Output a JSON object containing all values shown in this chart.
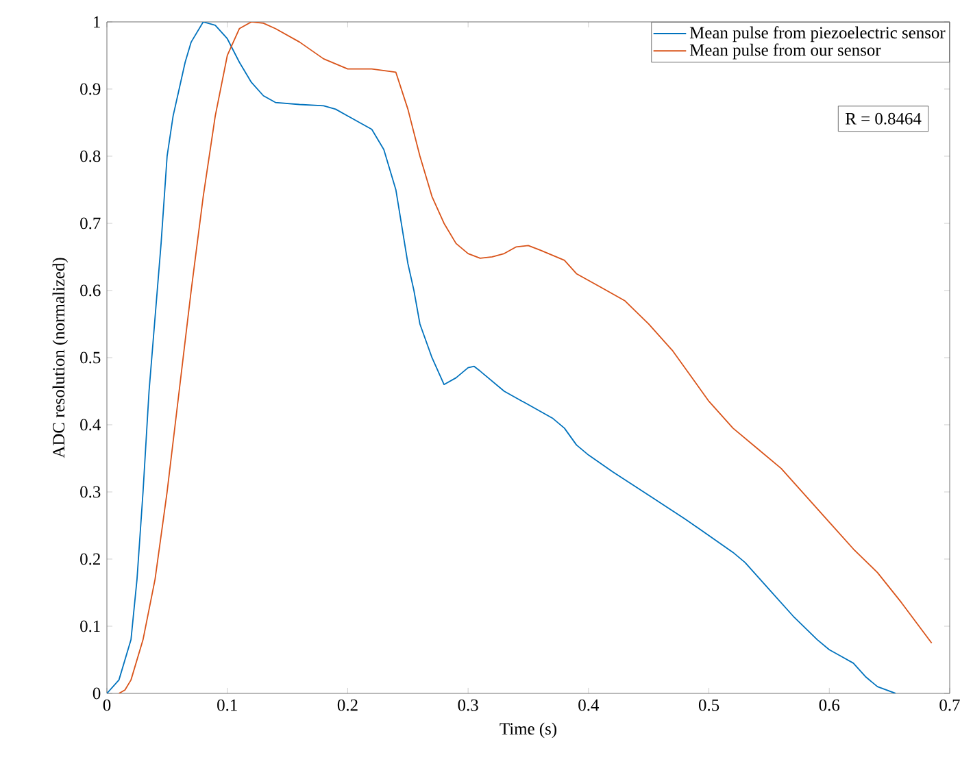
{
  "chart_data": {
    "type": "line",
    "xlabel": "Time (s)",
    "ylabel": "ADC resolution (normalized)",
    "xlim": [
      0,
      0.7
    ],
    "ylim": [
      0,
      1
    ],
    "xticks": [
      0,
      0.1,
      0.2,
      0.3,
      0.4,
      0.5,
      0.6,
      0.7
    ],
    "yticks": [
      0,
      0.1,
      0.2,
      0.3,
      0.4,
      0.5,
      0.6,
      0.7,
      0.8,
      0.9,
      1
    ],
    "legend": "top right",
    "annotations": [
      "R = 0.8464"
    ],
    "series": [
      {
        "name": "Mean pulse from piezoelectric sensor",
        "color": "#0072bd",
        "x": [
          0,
          0.01,
          0.02,
          0.025,
          0.03,
          0.035,
          0.04,
          0.045,
          0.05,
          0.055,
          0.06,
          0.065,
          0.07,
          0.08,
          0.09,
          0.1,
          0.11,
          0.12,
          0.13,
          0.14,
          0.16,
          0.18,
          0.19,
          0.2,
          0.21,
          0.22,
          0.23,
          0.24,
          0.25,
          0.255,
          0.26,
          0.27,
          0.28,
          0.29,
          0.3,
          0.305,
          0.31,
          0.33,
          0.35,
          0.37,
          0.38,
          0.39,
          0.4,
          0.42,
          0.45,
          0.48,
          0.5,
          0.52,
          0.53,
          0.55,
          0.57,
          0.59,
          0.6,
          0.61,
          0.62,
          0.63,
          0.64,
          0.655
        ],
        "values": [
          0,
          0.02,
          0.08,
          0.17,
          0.3,
          0.45,
          0.56,
          0.67,
          0.8,
          0.86,
          0.9,
          0.94,
          0.97,
          1.0,
          0.995,
          0.975,
          0.94,
          0.91,
          0.89,
          0.88,
          0.877,
          0.875,
          0.87,
          0.86,
          0.85,
          0.84,
          0.81,
          0.75,
          0.64,
          0.6,
          0.55,
          0.5,
          0.46,
          0.47,
          0.485,
          0.487,
          0.48,
          0.45,
          0.43,
          0.41,
          0.395,
          0.37,
          0.355,
          0.33,
          0.295,
          0.26,
          0.235,
          0.21,
          0.195,
          0.155,
          0.115,
          0.08,
          0.065,
          0.055,
          0.045,
          0.025,
          0.01,
          0
        ]
      },
      {
        "name": "Mean pulse from our sensor",
        "color": "#d95319",
        "x": [
          0.01,
          0.015,
          0.02,
          0.03,
          0.04,
          0.05,
          0.06,
          0.07,
          0.08,
          0.09,
          0.1,
          0.11,
          0.12,
          0.13,
          0.14,
          0.16,
          0.18,
          0.2,
          0.22,
          0.24,
          0.25,
          0.26,
          0.27,
          0.28,
          0.29,
          0.3,
          0.31,
          0.32,
          0.33,
          0.34,
          0.35,
          0.36,
          0.38,
          0.39,
          0.41,
          0.43,
          0.45,
          0.47,
          0.49,
          0.5,
          0.52,
          0.54,
          0.56,
          0.58,
          0.6,
          0.62,
          0.64,
          0.66,
          0.685
        ],
        "values": [
          0,
          0.005,
          0.02,
          0.08,
          0.17,
          0.3,
          0.45,
          0.6,
          0.74,
          0.86,
          0.95,
          0.99,
          1.0,
          0.998,
          0.99,
          0.97,
          0.945,
          0.93,
          0.93,
          0.925,
          0.87,
          0.8,
          0.74,
          0.7,
          0.67,
          0.655,
          0.648,
          0.65,
          0.655,
          0.665,
          0.667,
          0.66,
          0.645,
          0.625,
          0.605,
          0.585,
          0.55,
          0.51,
          0.46,
          0.435,
          0.395,
          0.365,
          0.335,
          0.295,
          0.255,
          0.215,
          0.18,
          0.135,
          0.075
        ]
      }
    ]
  }
}
